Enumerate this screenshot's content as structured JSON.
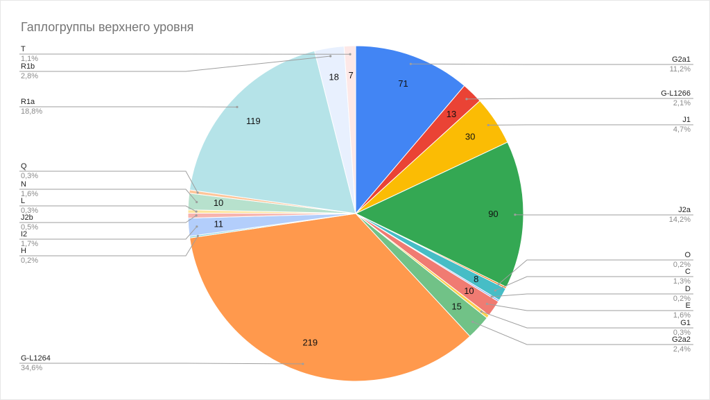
{
  "chart_data": {
    "type": "pie",
    "title": "Гаплогруппы верхнего уровня",
    "categories": [
      "G2a1",
      "G-L1266",
      "J1",
      "J2a",
      "O",
      "C",
      "D",
      "E",
      "G1",
      "G2a2",
      "G-L1264",
      "H",
      "I2",
      "J2b",
      "L",
      "N",
      "Q",
      "R1a",
      "R1b",
      "T"
    ],
    "values": [
      71,
      13,
      30,
      90,
      1,
      8,
      1,
      10,
      2,
      15,
      219,
      1,
      11,
      3,
      2,
      10,
      2,
      119,
      18,
      7
    ],
    "percent_labels": [
      "11,2%",
      "2,1%",
      "4,7%",
      "14,2%",
      "0,2%",
      "1,3%",
      "0,2%",
      "1,6%",
      "0,3%",
      "2,4%",
      "34,6%",
      "0,2%",
      "1,7%",
      "0,5%",
      "0,3%",
      "1,6%",
      "0,3%",
      "18,8%",
      "2,8%",
      "1,1%"
    ],
    "colors": [
      "#4285f4",
      "#ea4335",
      "#fbbc04",
      "#34a853",
      "#ff6d01",
      "#46bdc6",
      "#7baaf7",
      "#f07b72",
      "#fcd04f",
      "#71c287",
      "#ff994d",
      "#7ed1d7",
      "#b3cefb",
      "#f7b4ae",
      "#fde49b",
      "#b7e1cd",
      "#ffc599",
      "#b5e3e8",
      "#e8f0fe",
      "#fde8e7"
    ]
  }
}
